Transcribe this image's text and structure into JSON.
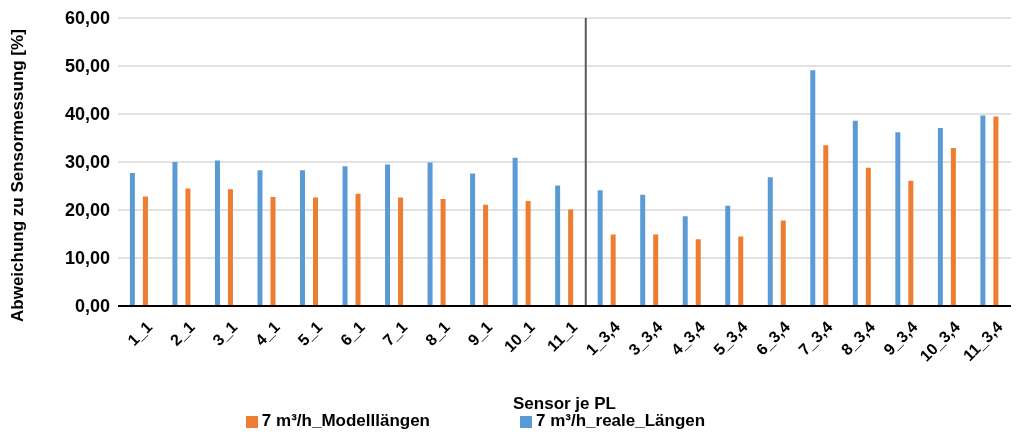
{
  "chart_data": {
    "type": "bar",
    "xlabel": "Sensor je PL",
    "ylabel": "Abweichung zu Sensormessung [%]",
    "categories": [
      "1_1",
      "2_1",
      "3_1",
      "4_1",
      "5_1",
      "6_1",
      "7_1",
      "8_1",
      "9_1",
      "10_1",
      "11_1",
      "1_3,4",
      "3_3,4",
      "4_3,4",
      "5_3,4",
      "6_3,4",
      "7_3,4",
      "8_3,4",
      "9_3,4",
      "10_3,4",
      "11_3,4"
    ],
    "series": [
      {
        "name": "7 m³/h_reale_Längen",
        "color": "#5b9bd5",
        "values": [
          27.7,
          30.0,
          30.3,
          28.3,
          28.3,
          29.1,
          29.5,
          29.9,
          27.6,
          30.9,
          25.1,
          24.1,
          23.2,
          18.7,
          20.9,
          26.8,
          49.1,
          38.6,
          36.2,
          37.1,
          39.7
        ]
      },
      {
        "name": "7 m³/h_Modelllängen",
        "color": "#ed7d31",
        "values": [
          22.8,
          24.5,
          24.3,
          22.7,
          22.6,
          23.4,
          22.6,
          22.3,
          21.1,
          21.9,
          20.1,
          14.9,
          14.9,
          13.9,
          14.5,
          17.8,
          33.5,
          28.8,
          26.1,
          32.9,
          39.5
        ]
      }
    ],
    "ylim": [
      0,
      60
    ],
    "yticks": [
      {
        "value": 0,
        "label": "0,00"
      },
      {
        "value": 10,
        "label": "10,00"
      },
      {
        "value": 20,
        "label": "20,00"
      },
      {
        "value": 30,
        "label": "30,00"
      },
      {
        "value": 40,
        "label": "40,00"
      },
      {
        "value": 50,
        "label": "50,00"
      },
      {
        "value": 60,
        "label": "60,00"
      }
    ],
    "grid": "y",
    "legend": "bottom",
    "ref_lines": [
      {
        "axis": "x",
        "value": "1_3,4",
        "color": "#595959"
      }
    ]
  }
}
